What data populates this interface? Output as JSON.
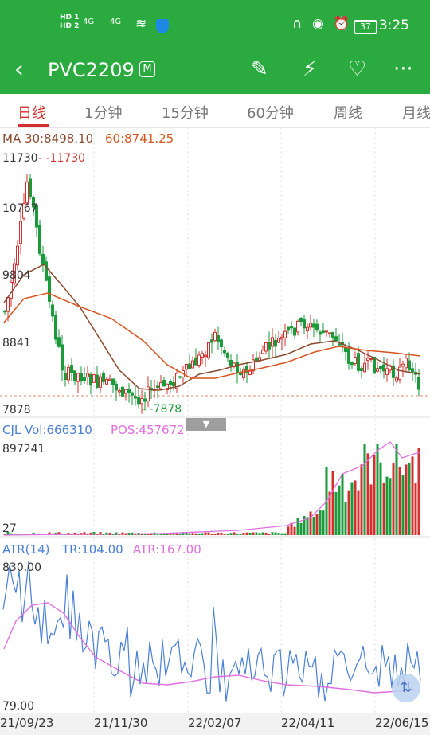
{
  "status_bar": {
    "sim1": "HD 1",
    "sim2": "HD 2",
    "network1": "4G",
    "network2": "4G",
    "battery": "37",
    "time": "3:25"
  },
  "header": {
    "title": "PVC2209",
    "badge": "M",
    "back_icon": "back-arrow-icon",
    "icons": [
      "edit-icon",
      "flash-icon",
      "heart-icon",
      "more-icon"
    ]
  },
  "tabs": [
    "日线",
    "1分钟",
    "15分钟",
    "60分钟",
    "周线",
    "月线"
  ],
  "active_tab": 0,
  "main_chart": {
    "ma30_label": "MA 30:8498.10",
    "ma60_label": "60:8741.25",
    "high_label": "11730",
    "high_marker": "- -11730",
    "low_marker": "- -7878",
    "y_ticks": [
      "11730",
      "10767",
      "9804",
      "8841",
      "7878"
    ]
  },
  "volume_panel": {
    "cjl_label": "CJL Vol:666310",
    "pos_label": "POS:457672",
    "y_top": "897241",
    "y_bottom": "27"
  },
  "atr_panel": {
    "atr_title": "ATR(14)",
    "tr_label": "TR:104.00",
    "atr_label": "ATR:167.00",
    "y_top": "830.00",
    "y_bottom": "79.00"
  },
  "dates": [
    "21/09/23",
    "21/11/30",
    "22/02/07",
    "22/04/11",
    "22/06/15"
  ],
  "colors": {
    "brand_green": "#2bab3f",
    "up": "#d32f2f",
    "down": "#1a9a3a",
    "ma30": "#8b4a2f",
    "ma60": "#d9531e",
    "cjl": "#4a7fd6",
    "pos": "#e06fe0"
  },
  "chart_data": [
    {
      "type": "line",
      "title": "",
      "x": [
        "21/09/23",
        "21/11/30",
        "22/02/07",
        "22/04/11",
        "22/06/15"
      ],
      "series": [
        {
          "name": "MA 30",
          "values": [
            9400,
            8000,
            8450,
            8800,
            8498
          ]
        },
        {
          "name": "60",
          "values": [
            9200,
            8650,
            8200,
            8800,
            8741
          ]
        }
      ],
      "ylim": [
        7878,
        11730
      ]
    },
    {
      "type": "bar",
      "title": "",
      "series": [
        {
          "name": "CJL Vol",
          "values": [
            666310
          ]
        },
        {
          "name": "POS",
          "values": [
            457672
          ]
        }
      ],
      "ylim": [
        27,
        897241
      ]
    },
    {
      "type": "line",
      "title": "",
      "series": [
        {
          "name": "TR",
          "values": [
            104.0
          ]
        },
        {
          "name": "ATR",
          "values": [
            167.0
          ]
        }
      ],
      "ylim": [
        79.0,
        830.0
      ]
    }
  ]
}
